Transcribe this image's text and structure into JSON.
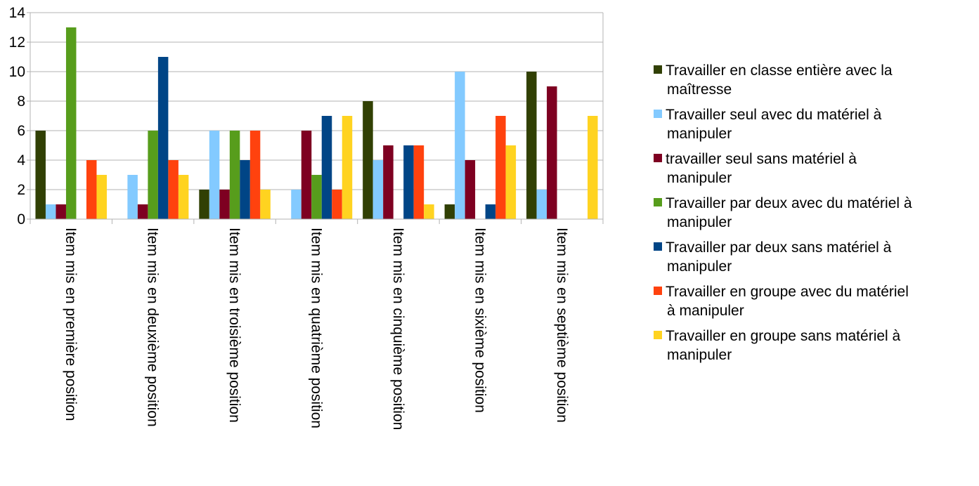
{
  "chart_data": {
    "type": "bar",
    "categories": [
      "Item mis en première position",
      "Item mis en deuxième position",
      "Item mis en troisième position",
      "Item mis en quatrième position",
      "Item mis en cinquième position",
      "Item mis en sixième position",
      "Item mis en septième position"
    ],
    "series": [
      {
        "name": "Travailler en classe entière avec la maîtresse",
        "name_lines": [
          "Travailler en classe entière avec la",
          "maîtresse"
        ],
        "color": "#314004",
        "values": [
          6,
          0,
          2,
          0,
          8,
          1,
          10
        ]
      },
      {
        "name": "Travailler seul avec du matériel à manipuler",
        "name_lines": [
          "Travailler seul avec du matériel à",
          "manipuler"
        ],
        "color": "#83caff",
        "values": [
          1,
          3,
          6,
          2,
          4,
          10,
          2
        ]
      },
      {
        "name": "travailler seul sans matériel à manipuler",
        "name_lines": [
          "travailler seul sans matériel à",
          "manipuler"
        ],
        "color": "#7e0021",
        "values": [
          1,
          1,
          2,
          6,
          5,
          4,
          9
        ]
      },
      {
        "name": "Travailler par deux avec du matériel à manipuler",
        "name_lines": [
          "Travailler par deux avec du matériel à",
          "manipuler"
        ],
        "color": "#579d1c",
        "values": [
          13,
          6,
          6,
          3,
          0,
          0,
          0
        ]
      },
      {
        "name": "Travailler par deux sans matériel à manipuler",
        "name_lines": [
          "Travailler par deux sans matériel à",
          "manipuler"
        ],
        "color": "#004586",
        "values": [
          0,
          11,
          4,
          7,
          5,
          1,
          0
        ]
      },
      {
        "name": "Travailler en groupe avec du matériel à manipuler",
        "name_lines": [
          "Travailler en groupe avec du matériel",
          "à manipuler"
        ],
        "color": "#ff420e",
        "values": [
          4,
          4,
          6,
          2,
          5,
          7,
          0
        ]
      },
      {
        "name": "Travailler en groupe sans matériel à manipuler",
        "name_lines": [
          "Travailler en groupe sans matériel à",
          "manipuler"
        ],
        "color": "#ffd320",
        "values": [
          3,
          3,
          2,
          7,
          1,
          5,
          7
        ]
      }
    ],
    "yticks": [
      0,
      2,
      4,
      6,
      8,
      10,
      12,
      14
    ],
    "ylim": [
      0,
      14
    ],
    "grid": "horizontal",
    "legend": "right",
    "title": "",
    "xlabel": "",
    "ylabel": ""
  }
}
